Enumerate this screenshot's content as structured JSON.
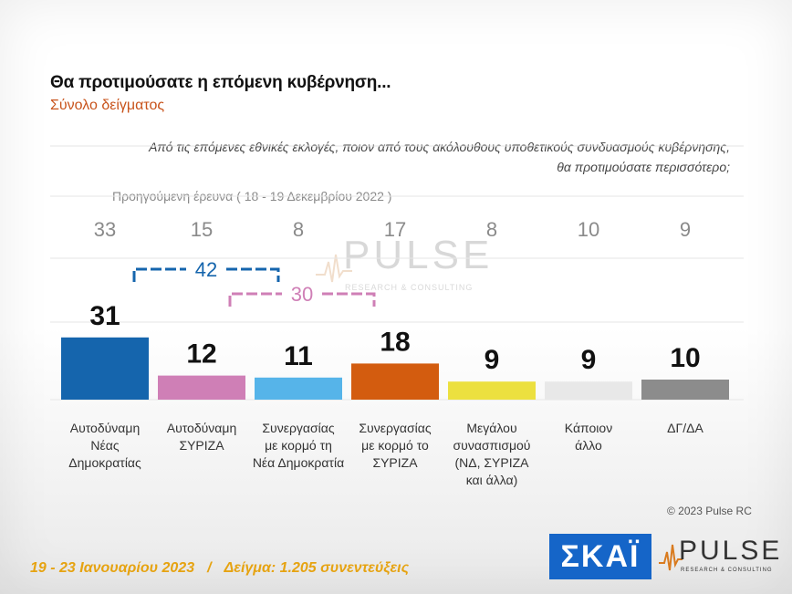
{
  "title": "Θα προτιμούσατε η επόμενη κυβέρνηση...",
  "subtitle": "Σύνολο δείγματος",
  "question": "Από τις επόμενες εθνικές εκλογές, ποιον από τους ακόλουθους υποθετικούς συνδυασμούς κυβέρνησης, θα προτιμούσατε περισσότερο;",
  "previous_survey_label": "Προηγούμενη έρευνα ( 18 - 19 Δεκεμβρίου 2022 )",
  "copyright": "© 2023 Pulse RC",
  "footer": {
    "dates": "19 - 23 Ιανουαρίου 2023",
    "separator": "/",
    "sample": "Δείγμα: 1.205 συνεντεύξεις"
  },
  "logos": {
    "skai": "ΣΚΑΪ",
    "pulse": "PULSE",
    "pulse_tagline": "RESEARCH & CONSULTING"
  },
  "watermark": {
    "word": "PULSE",
    "tagline": "RESEARCH & CONSULTING"
  },
  "chart_data": {
    "type": "bar",
    "categories": [
      [
        "Αυτοδύναμη",
        "Νέας",
        "Δημοκρατίας"
      ],
      [
        "Αυτοδύναμη",
        "ΣΥΡΙΖΑ"
      ],
      [
        "Συνεργασίας",
        "με κορμό τη",
        "Νέα Δημοκρατία"
      ],
      [
        "Συνεργασίας",
        "με κορμό το",
        "ΣΥΡΙΖΑ"
      ],
      [
        "Μεγάλου",
        "συνασπισμού",
        "(ΝΔ, ΣΥΡΙΖΑ",
        "και άλλα)"
      ],
      [
        "Κάποιον",
        "άλλο"
      ],
      [
        "ΔΓ/ΔΑ"
      ]
    ],
    "values": [
      31,
      12,
      11,
      18,
      9,
      9,
      10
    ],
    "previous_values": [
      33,
      15,
      8,
      17,
      8,
      10,
      9
    ],
    "colors": [
      "#1565ad",
      "#cf7fb6",
      "#56b4e9",
      "#d35c0f",
      "#ece03f",
      "#e8e8e8",
      "#8c8c8c"
    ],
    "brackets": [
      {
        "from": 0,
        "to": 2,
        "value": "42",
        "color": "#1565ad"
      },
      {
        "from": 1,
        "to": 3,
        "value": "30",
        "color": "#cf7fb6"
      }
    ],
    "ylim": [
      0,
      100
    ],
    "grid": true
  }
}
